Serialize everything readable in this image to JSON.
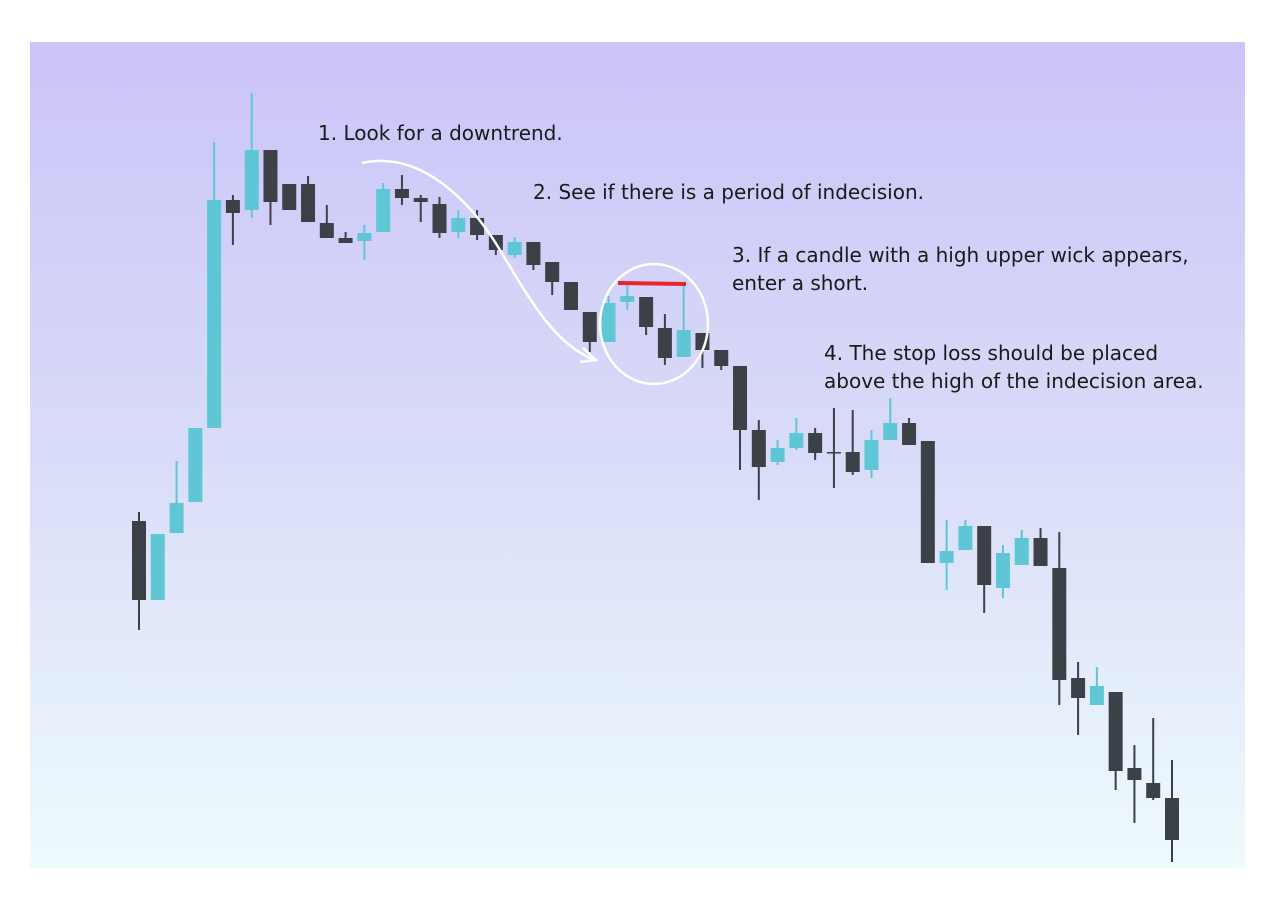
{
  "chart_data": {
    "type": "candlestick",
    "annotations": [
      [
        "1. Look for a downtrend."
      ],
      [
        "2. See if there is a period of indecision."
      ],
      [
        "3. If a candle with a high upper wick appears,",
        "enter a short."
      ],
      [
        "4. The stop loss should be placed",
        "above the high of the indecision area."
      ]
    ],
    "up_color": "#5ec6d4",
    "down_color": "#3c4047",
    "ylim": [
      0,
      826
    ],
    "open": [
      347,
      268,
      335,
      366,
      440,
      668,
      658,
      718,
      684,
      684,
      645,
      630,
      627,
      636,
      679,
      670,
      664,
      636,
      650,
      633,
      613,
      626,
      606,
      586,
      556,
      526,
      566,
      571,
      540,
      511,
      535,
      518,
      502,
      438,
      406,
      420,
      435,
      416,
      416,
      398,
      428,
      445,
      427,
      305,
      318,
      342,
      280,
      303,
      330,
      300,
      190,
      163,
      176,
      100,
      85,
      70
    ],
    "high": [
      356,
      334,
      407,
      440,
      726,
      673,
      775,
      718,
      684,
      692,
      663,
      636,
      643,
      685,
      693,
      673,
      671,
      658,
      658,
      633,
      631,
      626,
      606,
      586,
      556,
      572,
      583,
      571,
      554,
      583,
      535,
      518,
      502,
      448,
      428,
      450,
      440,
      460,
      458,
      438,
      470,
      450,
      427,
      348,
      348,
      342,
      323,
      338,
      340,
      336,
      206,
      201,
      176,
      123,
      150,
      108
    ],
    "low": [
      238,
      268,
      335,
      366,
      440,
      623,
      650,
      643,
      658,
      646,
      630,
      625,
      608,
      636,
      663,
      646,
      630,
      630,
      628,
      613,
      610,
      598,
      573,
      558,
      516,
      526,
      558,
      533,
      503,
      511,
      500,
      498,
      398,
      368,
      403,
      418,
      408,
      380,
      393,
      390,
      428,
      423,
      305,
      278,
      318,
      255,
      270,
      303,
      302,
      163,
      133,
      163,
      78,
      45,
      68,
      6
    ],
    "close": [
      268,
      334,
      365,
      440,
      668,
      655,
      718,
      666,
      658,
      646,
      630,
      625,
      635,
      679,
      670,
      666,
      635,
      650,
      633,
      618,
      626,
      603,
      586,
      558,
      526,
      565,
      572,
      541,
      510,
      538,
      518,
      502,
      438,
      401,
      420,
      435,
      415,
      415,
      396,
      428,
      445,
      423,
      305,
      317,
      342,
      283,
      315,
      330,
      302,
      188,
      170,
      182,
      97,
      88,
      70,
      28
    ]
  }
}
